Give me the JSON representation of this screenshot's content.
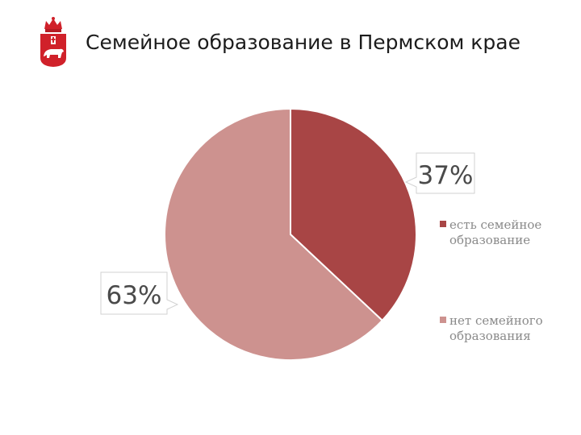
{
  "title": "Семейное образование в Пермском крае",
  "emblem": {
    "icon": "perm-krai-coat-of-arms-icon",
    "colors": {
      "shield": "#d0212a",
      "bear": "#ffffff",
      "crown": "#d0212a"
    }
  },
  "chart_data": {
    "type": "pie",
    "title": "",
    "start_angle_deg": 0,
    "direction": "clockwise",
    "slices": [
      {
        "label_lines": [
          "есть семейное",
          "образование"
        ],
        "value": 37,
        "display": "37%",
        "color": "#a84545"
      },
      {
        "label_lines": [
          "нет семейного",
          "образования"
        ],
        "value": 63,
        "display": "63%",
        "color": "#cd928f"
      }
    ],
    "legend_position": "right"
  }
}
